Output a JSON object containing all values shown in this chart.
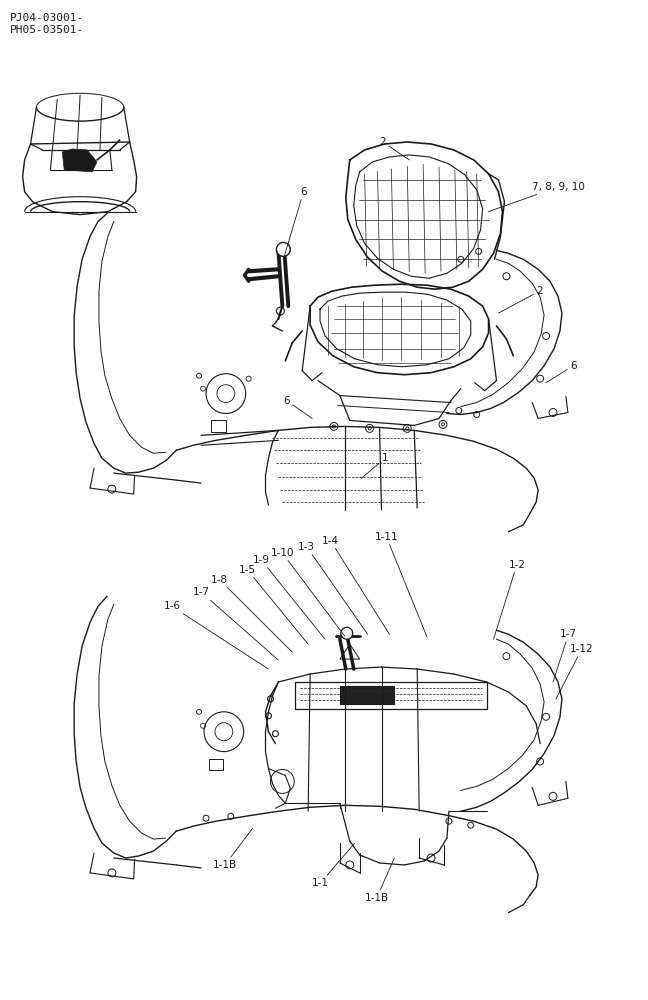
{
  "background_color": "#ffffff",
  "line_color": "#1a1a1a",
  "fig_width": 6.48,
  "fig_height": 10.0,
  "dpi": 100,
  "header_text_1": "PJ04-03001-",
  "header_text_2": "PH05-03501-",
  "font_size_header": 8,
  "font_size_label": 7.5
}
